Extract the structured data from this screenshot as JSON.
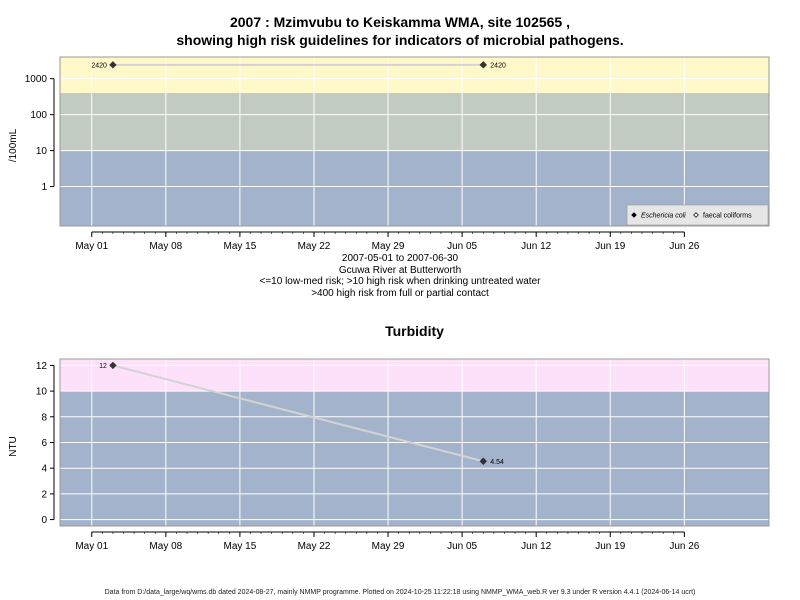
{
  "title_line1": "2007 : Mzimvubu to Keiskamma WMA, site 102565 ,",
  "title_line2": "showing high risk guidelines for indicators of microbial pathogens.",
  "caption": {
    "date_range": "2007-05-01 to 2007-06-30",
    "location": "Gcuwa River at Butterworth",
    "guideline1": "<=10 low-med risk; >10 high risk when drinking untreated water",
    "guideline2": ">400 high risk from full or partial contact"
  },
  "footer": "Data from D:/data_large/wq/wms.db dated 2024-08-27, mainly NMMP programme. Plotted on 2024-10-25 11:22:18 using NMMP_WMA_web.R ver 9.3 under R version 4.4.1 (2024-06-14 ucrt)",
  "colors": {
    "low_band": "#a2b3cb",
    "mid_band": "#c1cbc2",
    "high_band_micro": "#fff8c8",
    "high_band_turb": "#fde1fa",
    "grid": "#ffffff",
    "series_line": "#d3d3d3",
    "marker": "#333333"
  },
  "chart_data": [
    {
      "type": "scatter",
      "title": "",
      "xlabel": "",
      "ylabel": "/100mL",
      "y_scale": "log10",
      "ylim": [
        0.08,
        4000
      ],
      "yticks": [
        1,
        10,
        100,
        1000
      ],
      "ytick_labels": [
        "1",
        "10",
        "100",
        "1000"
      ],
      "xlim": [
        "2007-04-28",
        "2007-07-04"
      ],
      "xticks": [
        "2007-05-01",
        "2007-05-08",
        "2007-05-15",
        "2007-05-22",
        "2007-05-29",
        "2007-06-05",
        "2007-06-12",
        "2007-06-19",
        "2007-06-26"
      ],
      "xtick_labels": [
        "May 01",
        "May 08",
        "May 15",
        "May 22",
        "May 29",
        "Jun 05",
        "Jun 12",
        "Jun 19",
        "Jun 26"
      ],
      "bands": [
        {
          "from": 0.08,
          "to": 10,
          "color": "#a2b3cb"
        },
        {
          "from": 10,
          "to": 400,
          "color": "#c1cbc2"
        },
        {
          "from": 400,
          "to": 4000,
          "color": "#fff8c8"
        }
      ],
      "series": [
        {
          "name": "Eschericia coli",
          "marker": "filled-diamond",
          "x": [
            "2007-05-03",
            "2007-06-07"
          ],
          "y": [
            2420,
            2420
          ],
          "labels": [
            "2420",
            "2420"
          ]
        }
      ],
      "legend": {
        "position": "bottom-right",
        "entries": [
          {
            "label": "Eschericia coli",
            "marker": "filled-diamond",
            "italic": true
          },
          {
            "label": "faecal coliforms",
            "marker": "open-diamond",
            "italic": false
          }
        ]
      },
      "grid": true
    },
    {
      "type": "line",
      "title": "Turbidity",
      "xlabel": "",
      "ylabel": "NTU",
      "ylim": [
        -0.5,
        12.5
      ],
      "yticks": [
        0,
        2,
        4,
        6,
        8,
        10,
        12
      ],
      "ytick_labels": [
        "0",
        "2",
        "4",
        "6",
        "8",
        "10",
        "12"
      ],
      "xlim": [
        "2007-04-28",
        "2007-07-04"
      ],
      "xticks": [
        "2007-05-01",
        "2007-05-08",
        "2007-05-15",
        "2007-05-22",
        "2007-05-29",
        "2007-06-05",
        "2007-06-12",
        "2007-06-19",
        "2007-06-26"
      ],
      "xtick_labels": [
        "May 01",
        "May 08",
        "May 15",
        "May 22",
        "May 29",
        "Jun 05",
        "Jun 12",
        "Jun 19",
        "Jun 26"
      ],
      "bands": [
        {
          "from": -0.5,
          "to": 10,
          "color": "#a2b3cb"
        },
        {
          "from": 10,
          "to": 12.5,
          "color": "#fde1fa"
        }
      ],
      "series": [
        {
          "name": "",
          "marker": "filled-diamond",
          "x": [
            "2007-05-03",
            "2007-06-07"
          ],
          "y": [
            12,
            4.54
          ],
          "labels": [
            "12",
            "4.54"
          ]
        }
      ],
      "grid": true
    }
  ]
}
